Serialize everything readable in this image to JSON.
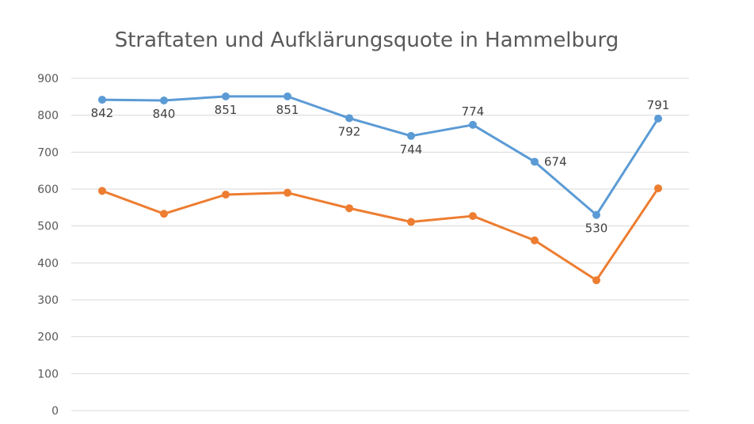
{
  "chart_data": {
    "type": "line",
    "title": "Straftaten und Aufklärungsquote in Hammelburg",
    "xlabel": "",
    "ylabel": "",
    "ylim": [
      0,
      900
    ],
    "yticks": [
      0,
      100,
      200,
      300,
      400,
      500,
      600,
      700,
      800,
      900
    ],
    "grid": true,
    "categories": [
      "",
      "",
      "",
      "",
      "",
      "",
      "",
      "",
      "",
      ""
    ],
    "series": [
      {
        "color": "#5b9bd5",
        "values": [
          842,
          840,
          851,
          851,
          792,
          744,
          774,
          674,
          530,
          791
        ],
        "labels": [
          "842",
          "840",
          "851",
          "851",
          "792",
          "744",
          "774",
          "674",
          "530",
          "791"
        ],
        "label_positions": [
          "below",
          "below",
          "below",
          "below",
          "below",
          "below",
          "above",
          "right",
          "below",
          "above"
        ]
      },
      {
        "color": "#ed7d31",
        "values": [
          595,
          533,
          585,
          590,
          548,
          511,
          527,
          461,
          353,
          602
        ]
      }
    ]
  }
}
